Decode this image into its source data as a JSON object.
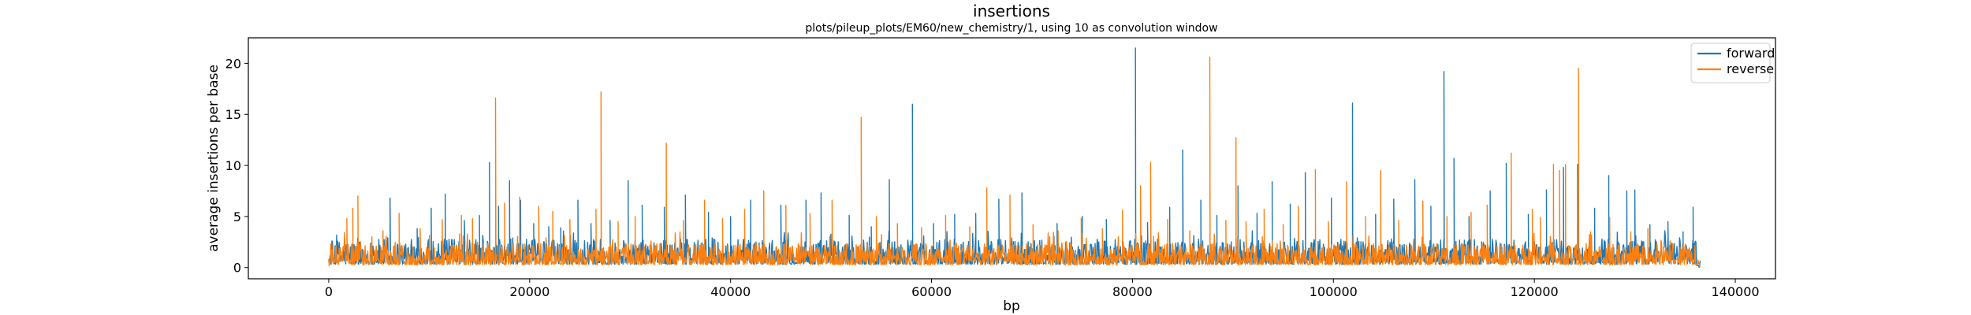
{
  "chart_data": {
    "type": "line",
    "title": "insertions",
    "subtitle": "plots/pileup_plots/EM60/new_chemistry/1, using 10 as convolution window",
    "xlabel": "bp",
    "ylabel": "average insertions per base",
    "xlim": [
      -8000,
      144000
    ],
    "ylim": [
      -1.1,
      22.5
    ],
    "xticks": [
      0,
      20000,
      40000,
      60000,
      80000,
      100000,
      120000,
      140000
    ],
    "yticks": [
      0,
      5,
      10,
      15,
      20
    ],
    "grid": false,
    "legend": "top-right",
    "data_range": [
      0,
      136500
    ],
    "series": [
      {
        "name": "forward",
        "color": "#1f77b4",
        "baseline": 1.3,
        "peaks": [
          [
            800,
            1.5
          ],
          [
            3000,
            2.5
          ],
          [
            6100,
            6.8
          ],
          [
            8800,
            3.8
          ],
          [
            10200,
            5.8
          ],
          [
            11600,
            7.2
          ],
          [
            13500,
            4.6
          ],
          [
            15000,
            5.1
          ],
          [
            16000,
            10.3
          ],
          [
            16900,
            6.0
          ],
          [
            18000,
            8.5
          ],
          [
            19100,
            6.6
          ],
          [
            20400,
            4.3
          ],
          [
            21900,
            4.0
          ],
          [
            23100,
            3.9
          ],
          [
            24800,
            6.6
          ],
          [
            26100,
            4.3
          ],
          [
            28000,
            4.6
          ],
          [
            29800,
            8.5
          ],
          [
            31200,
            6.1
          ],
          [
            33400,
            5.9
          ],
          [
            35500,
            7.1
          ],
          [
            37800,
            5.4
          ],
          [
            40000,
            5.0
          ],
          [
            42000,
            6.6
          ],
          [
            45000,
            6.1
          ],
          [
            47500,
            6.6
          ],
          [
            49000,
            7.3
          ],
          [
            51800,
            5.1
          ],
          [
            54000,
            4.0
          ],
          [
            55800,
            8.6
          ],
          [
            58100,
            16.0
          ],
          [
            60200,
            4.3
          ],
          [
            62300,
            5.2
          ],
          [
            64400,
            5.3
          ],
          [
            66700,
            6.7
          ],
          [
            69000,
            7.3
          ],
          [
            72500,
            4.3
          ],
          [
            75000,
            5.0
          ],
          [
            77400,
            4.7
          ],
          [
            80300,
            21.5
          ],
          [
            81500,
            4.4
          ],
          [
            83700,
            5.9
          ],
          [
            85000,
            11.5
          ],
          [
            86800,
            6.6
          ],
          [
            88400,
            5.1
          ],
          [
            90500,
            8.0
          ],
          [
            92400,
            5.3
          ],
          [
            93900,
            8.4
          ],
          [
            95700,
            6.2
          ],
          [
            97200,
            9.3
          ],
          [
            99800,
            6.8
          ],
          [
            101900,
            16.1
          ],
          [
            104200,
            5.2
          ],
          [
            106000,
            6.7
          ],
          [
            108100,
            8.6
          ],
          [
            109700,
            6.0
          ],
          [
            111000,
            19.2
          ],
          [
            112000,
            10.7
          ],
          [
            113500,
            5.0
          ],
          [
            115600,
            7.5
          ],
          [
            117200,
            10.2
          ],
          [
            119400,
            5.2
          ],
          [
            121200,
            7.6
          ],
          [
            122900,
            9.8
          ],
          [
            124300,
            10.1
          ],
          [
            126000,
            5.8
          ],
          [
            127400,
            9.0
          ],
          [
            129200,
            7.5
          ],
          [
            130000,
            7.6
          ],
          [
            131500,
            4.2
          ],
          [
            133300,
            4.5
          ],
          [
            134800,
            3.5
          ],
          [
            135800,
            5.9
          ]
        ]
      },
      {
        "name": "reverse",
        "color": "#ff7f0e",
        "baseline": 1.1,
        "peaks": [
          [
            300,
            1.7
          ],
          [
            1800,
            4.8
          ],
          [
            2400,
            5.8
          ],
          [
            2900,
            7.0
          ],
          [
            4300,
            3.0
          ],
          [
            5400,
            3.6
          ],
          [
            7000,
            5.3
          ],
          [
            9100,
            3.8
          ],
          [
            11300,
            4.7
          ],
          [
            13200,
            5.1
          ],
          [
            14300,
            4.8
          ],
          [
            16600,
            16.6
          ],
          [
            17500,
            6.3
          ],
          [
            19000,
            6.9
          ],
          [
            20900,
            6.0
          ],
          [
            22300,
            5.5
          ],
          [
            24000,
            4.7
          ],
          [
            26600,
            5.7
          ],
          [
            27100,
            17.2
          ],
          [
            28800,
            4.5
          ],
          [
            30500,
            5.0
          ],
          [
            33600,
            12.2
          ],
          [
            35300,
            4.6
          ],
          [
            37400,
            6.6
          ],
          [
            39200,
            4.8
          ],
          [
            41400,
            5.7
          ],
          [
            43300,
            7.5
          ],
          [
            45500,
            6.1
          ],
          [
            47900,
            5.3
          ],
          [
            50100,
            6.6
          ],
          [
            53000,
            14.7
          ],
          [
            54500,
            5.0
          ],
          [
            56600,
            4.3
          ],
          [
            59000,
            3.9
          ],
          [
            61400,
            5.1
          ],
          [
            63800,
            4.0
          ],
          [
            65500,
            7.8
          ],
          [
            67800,
            7.1
          ],
          [
            70100,
            4.2
          ],
          [
            72600,
            3.6
          ],
          [
            74900,
            4.8
          ],
          [
            77000,
            3.8
          ],
          [
            79000,
            5.6
          ],
          [
            80800,
            8.0
          ],
          [
            81800,
            10.3
          ],
          [
            83500,
            4.7
          ],
          [
            85700,
            3.6
          ],
          [
            87700,
            20.6
          ],
          [
            89300,
            4.6
          ],
          [
            90300,
            12.7
          ],
          [
            91300,
            4.5
          ],
          [
            93100,
            5.7
          ],
          [
            95000,
            4.2
          ],
          [
            96500,
            6.0
          ],
          [
            98200,
            9.6
          ],
          [
            99500,
            4.5
          ],
          [
            101300,
            8.4
          ],
          [
            103200,
            5.0
          ],
          [
            104700,
            9.5
          ],
          [
            106500,
            4.6
          ],
          [
            108900,
            6.5
          ],
          [
            111300,
            5.0
          ],
          [
            113700,
            5.4
          ],
          [
            115300,
            6.1
          ],
          [
            117700,
            11.2
          ],
          [
            119800,
            5.7
          ],
          [
            120600,
            4.9
          ],
          [
            121900,
            10.1
          ],
          [
            122500,
            9.5
          ],
          [
            123100,
            10.1
          ],
          [
            124400,
            19.5
          ],
          [
            125600,
            3.5
          ],
          [
            127500,
            4.9
          ],
          [
            129600,
            3.5
          ],
          [
            131300,
            3.8
          ],
          [
            133500,
            2.6
          ],
          [
            135600,
            1.6
          ]
        ]
      }
    ]
  }
}
